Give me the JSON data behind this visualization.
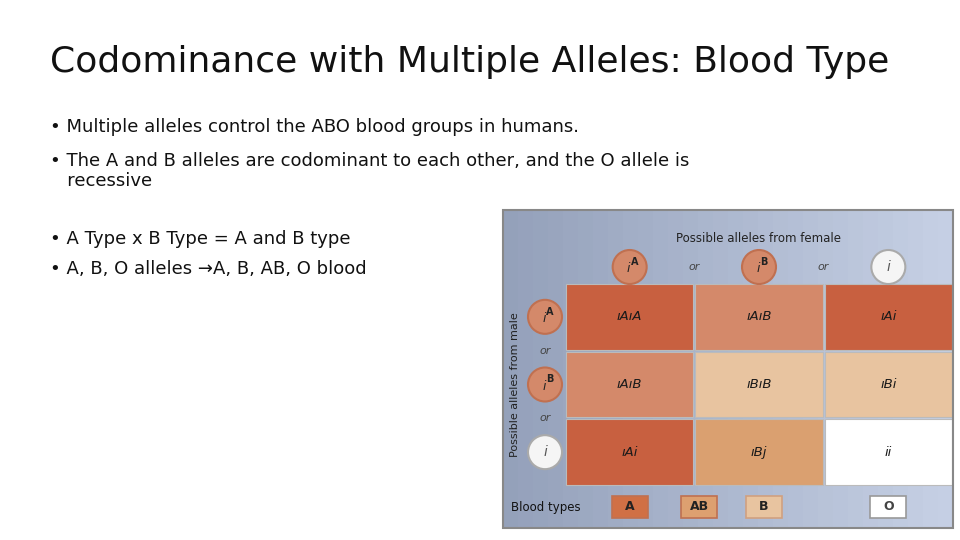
{
  "title": "Codominance with Multiple Alleles: Blood Type",
  "bullet1": "Multiple alleles control the ABO blood groups in humans.",
  "bullet2": "The A and B alleles are codominant to each other, and the O allele is",
  "bullet2b": "   recessive",
  "bullet3": "A Type x B Type = A and B type",
  "bullet4": "A, B, O alleles →A, B, AB, O blood",
  "background_color": "#ffffff",
  "title_color": "#111111",
  "bullet_color": "#111111",
  "title_fontsize": 26,
  "bullet_fontsize": 13,
  "table_bg_left": "#9faac0",
  "table_bg_right": "#c8d0e8",
  "cell_colors": {
    "AA": "#c86040",
    "AB": "#d4896a",
    "Ai": "#c86040",
    "BA": "#d4896a",
    "BB": "#e8c4a0",
    "Bi": "#e8c4a0",
    "iA": "#c86040",
    "iB": "#daa070",
    "ii": "#ffffff"
  },
  "circle_color_A": "#d4896a",
  "circle_color_i": "#f5f5f5",
  "circle_edge_A": "#c07050",
  "circle_edge_i": "#aaaaaa",
  "blood_color_A": "#d07045",
  "blood_color_AB": "#dda070",
  "blood_color_B": "#e8c4a0",
  "blood_color_O": "#ffffff",
  "header_text": "Possible alleles from female",
  "side_text": "Possible alleles from male",
  "blood_label": "Blood types"
}
